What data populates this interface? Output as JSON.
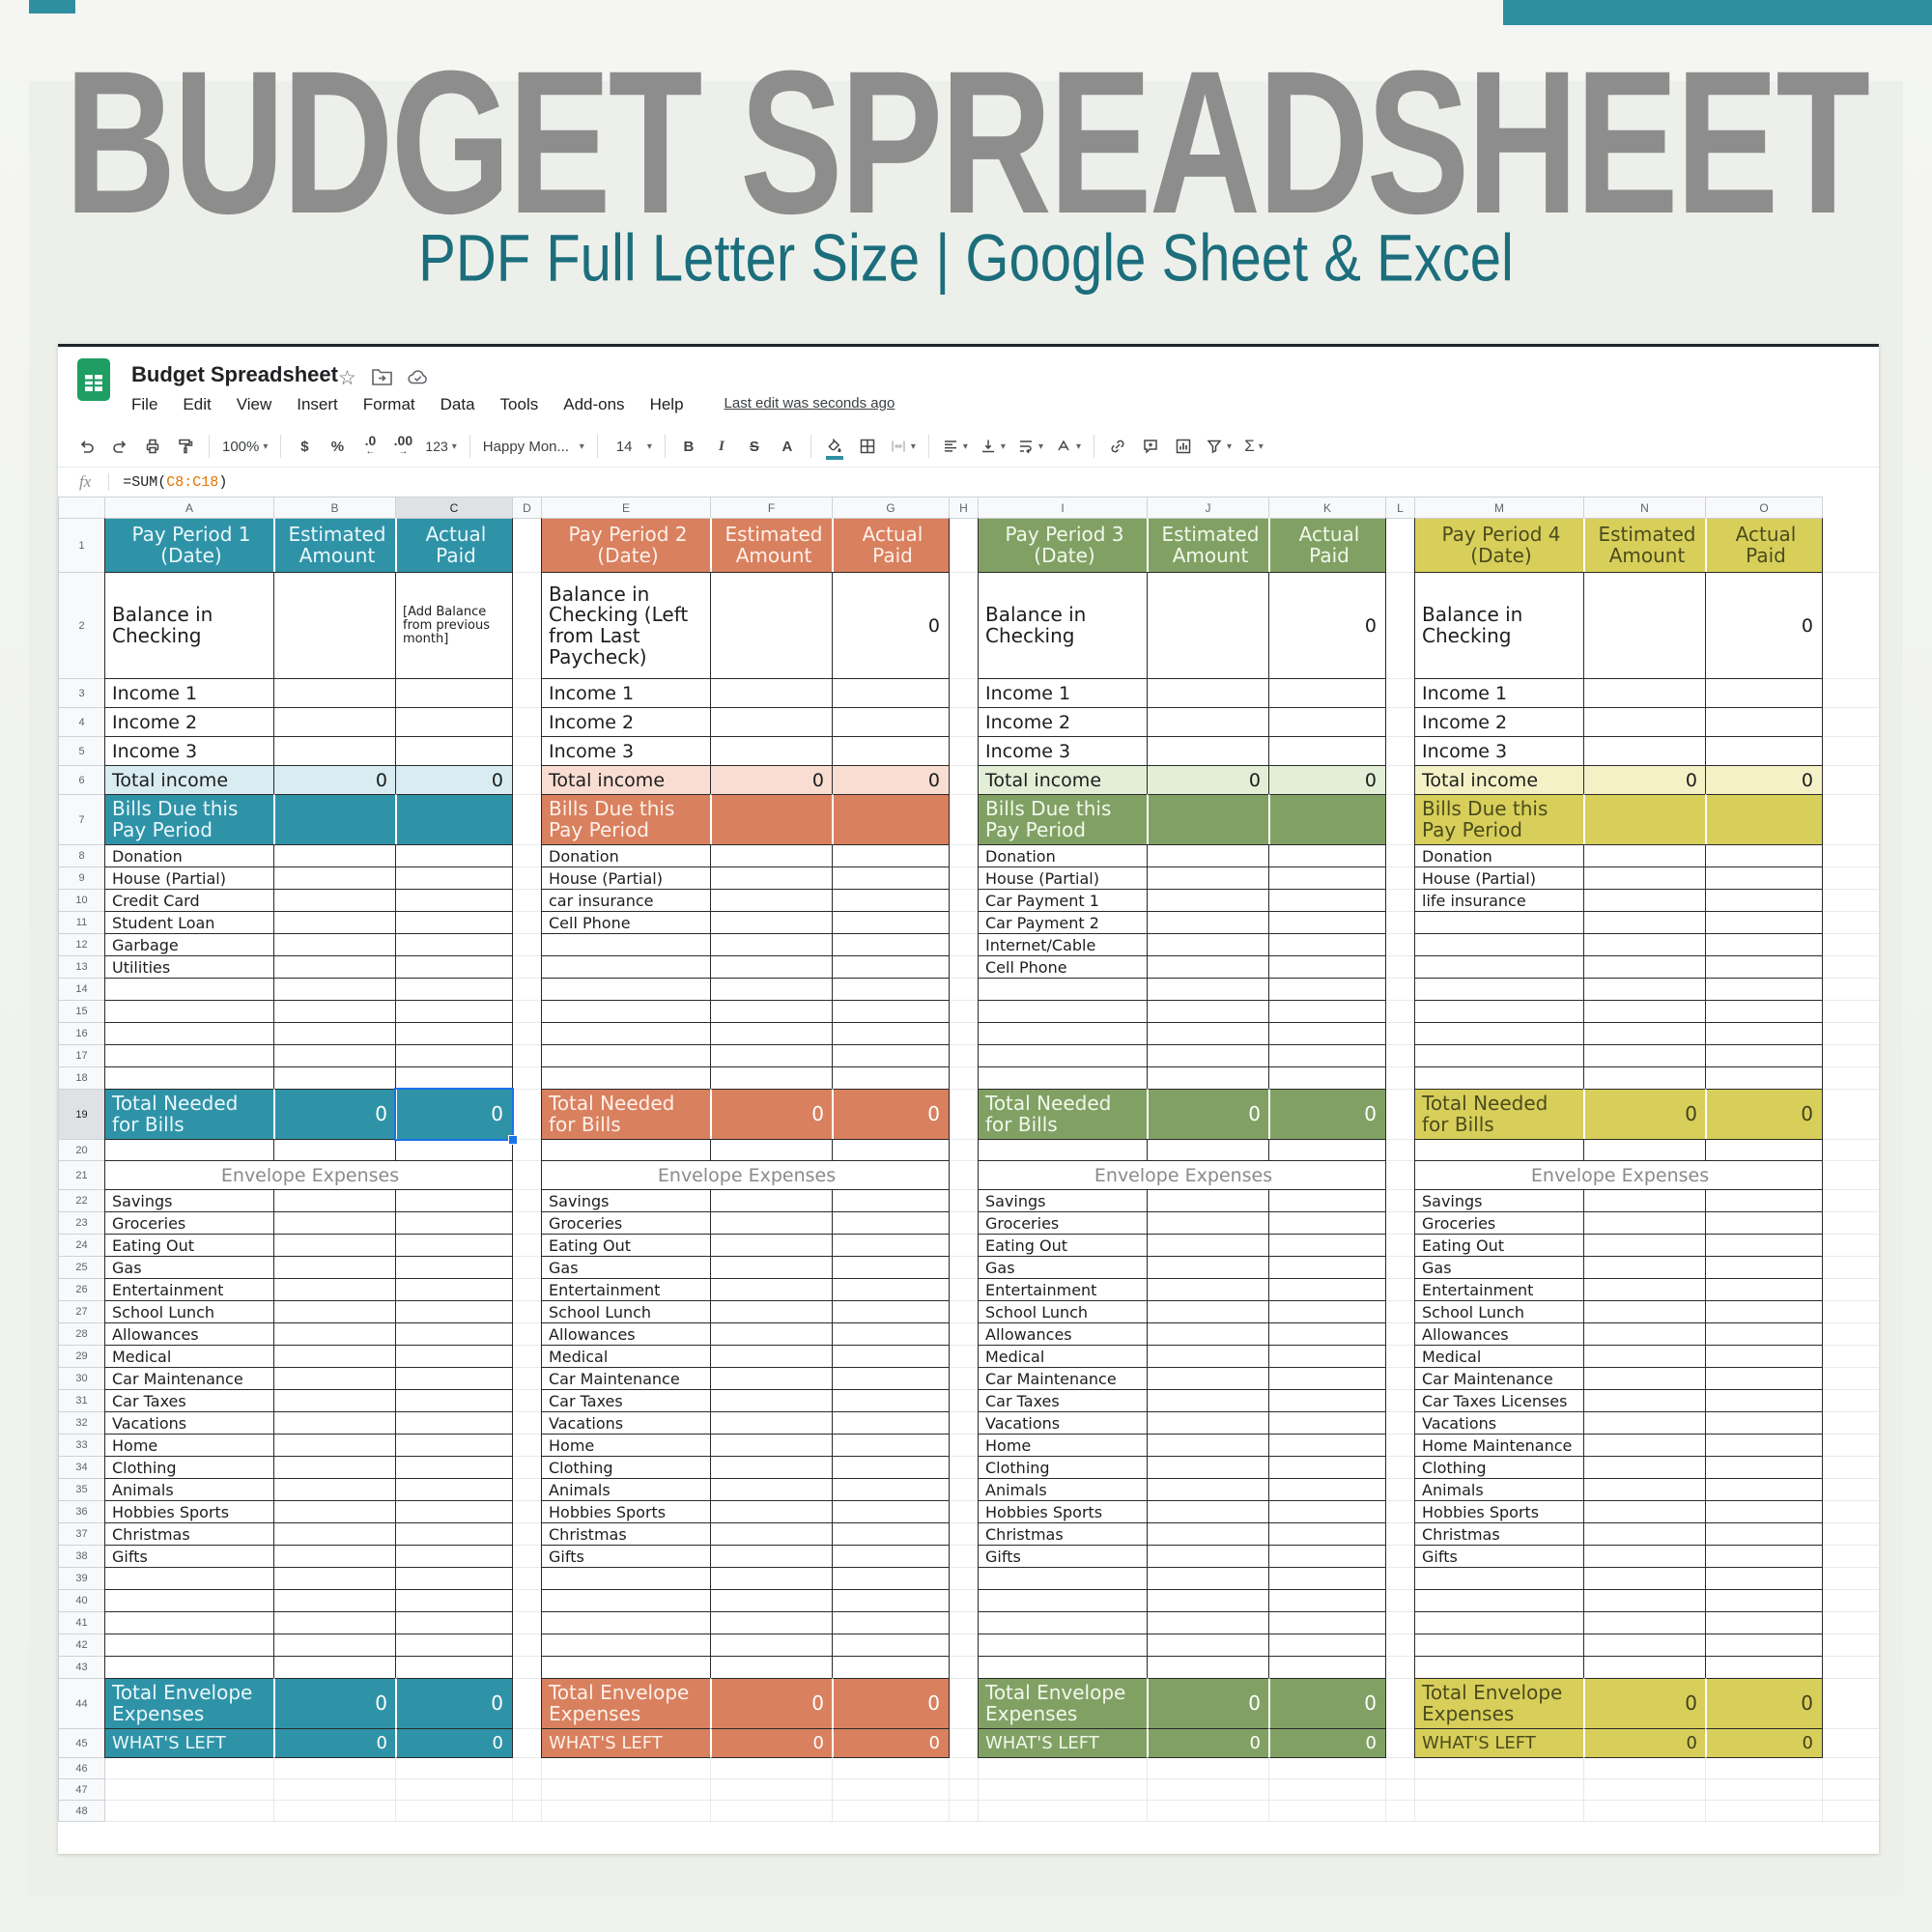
{
  "page": {
    "banner_title": "BUDGET SPREADSHEET",
    "banner_subtitle": "PDF Full Letter Size | Google Sheet & Excel"
  },
  "colors": {
    "accent_teal": "#2e8fa0",
    "title_gray": "#8d8d8d",
    "subtitle_teal": "#1c6e7d",
    "selection_blue": "#1a73e8",
    "formula_range_orange": "#e37400"
  },
  "app": {
    "doc_title": "Budget Spreadsheet",
    "menus": [
      "File",
      "Edit",
      "View",
      "Insert",
      "Format",
      "Data",
      "Tools",
      "Add-ons",
      "Help"
    ],
    "last_edit": "Last edit was seconds ago",
    "fx_label": "fx",
    "formula": {
      "prefix": "=SUM(",
      "range": "C8:C18",
      "suffix": ")"
    },
    "toolbar": {
      "zoom": "100%",
      "currency": "$",
      "percent": "%",
      "decimal_decrease": ".0",
      "decimal_increase": ".00",
      "number_format": "123",
      "font_name": "Happy Mon...",
      "font_size": "14",
      "bold": "B",
      "italic": "I",
      "strikethrough": "S",
      "text_color": "A",
      "functions": "Σ"
    }
  },
  "grid": {
    "column_letters": [
      "A",
      "B",
      "C",
      "D",
      "E",
      "F",
      "G",
      "H",
      "I",
      "J",
      "K",
      "L",
      "M",
      "N",
      "O"
    ],
    "row_count": 48,
    "selected_cell": "C19",
    "selected_column": "C",
    "selected_row": 19
  },
  "sections": [
    {
      "name": "pay-period-1",
      "columns": [
        "A",
        "B",
        "C"
      ],
      "theme": {
        "header_bg": "#2f93a8",
        "header_fg": "#eaf7fa",
        "tint_bg": "#d8ecf2",
        "total_num_fg": "#ffffff"
      },
      "header": [
        "Pay Period 1 (Date)",
        "Estimated Amount",
        "Actual Paid"
      ],
      "balance_label": "Balance in Checking",
      "balance_note": "[Add Balance from previous month]",
      "balance_actual": "",
      "incomes": [
        "Income 1",
        "Income 2",
        "Income 3"
      ],
      "total_income": {
        "label": "Total income",
        "est": "0",
        "act": "0"
      },
      "bills_header": "Bills Due this Pay Period",
      "bills": [
        "Donation",
        "House (Partial)",
        "Credit Card",
        "Student Loan",
        "Garbage",
        "Utilities"
      ],
      "total_bills": {
        "label": "Total Needed for Bills",
        "est": "0",
        "act": "0"
      },
      "envelope_title": "Envelope Expenses",
      "envelopes": [
        "Savings",
        "Groceries",
        "Eating Out",
        "Gas",
        "Entertainment",
        "School Lunch",
        "Allowances",
        "Medical",
        "Car Maintenance",
        "Car Taxes",
        "Vacations",
        "Home",
        "Clothing",
        "Animals",
        "Hobbies Sports",
        "Christmas",
        "Gifts"
      ],
      "total_envelope": {
        "label": "Total Envelope Expenses",
        "est": "0",
        "act": "0"
      },
      "whats_left": {
        "label": "WHAT'S LEFT",
        "est": "0",
        "act": "0"
      }
    },
    {
      "name": "pay-period-2",
      "columns": [
        "E",
        "F",
        "G"
      ],
      "theme": {
        "header_bg": "#d9805f",
        "header_fg": "#fdf1ea",
        "tint_bg": "#f9ddd2",
        "total_num_fg": "#ffffff"
      },
      "header": [
        "Pay Period 2 (Date)",
        "Estimated Amount",
        "Actual Paid"
      ],
      "balance_label": "Balance in Checking (Left from Last Paycheck)",
      "balance_note": "",
      "balance_actual": "0",
      "incomes": [
        "Income 1",
        "Income 2",
        "Income 3"
      ],
      "total_income": {
        "label": "Total income",
        "est": "0",
        "act": "0"
      },
      "bills_header": "Bills Due this Pay Period",
      "bills": [
        "Donation",
        "House (Partial)",
        "car insurance",
        "Cell Phone"
      ],
      "total_bills": {
        "label": "Total Needed for Bills",
        "est": "0",
        "act": "0"
      },
      "envelope_title": "Envelope Expenses",
      "envelopes": [
        "Savings",
        "Groceries",
        "Eating Out",
        "Gas",
        "Entertainment",
        "School Lunch",
        "Allowances",
        "Medical",
        "Car Maintenance",
        "Car Taxes",
        "Vacations",
        "Home",
        "Clothing",
        "Animals",
        "Hobbies Sports",
        "Christmas",
        "Gifts"
      ],
      "total_envelope": {
        "label": "Total Envelope Expenses",
        "est": "0",
        "act": "0"
      },
      "whats_left": {
        "label": "WHAT'S LEFT",
        "est": "0",
        "act": "0"
      }
    },
    {
      "name": "pay-period-3",
      "columns": [
        "I",
        "J",
        "K"
      ],
      "theme": {
        "header_bg": "#81a164",
        "header_fg": "#f2f8ec",
        "tint_bg": "#e3eed7",
        "total_num_fg": "#ffffff"
      },
      "header": [
        "Pay Period 3 (Date)",
        "Estimated Amount",
        "Actual Paid"
      ],
      "balance_label": "Balance in Checking",
      "balance_note": "",
      "balance_actual": "0",
      "incomes": [
        "Income 1",
        "Income 2",
        "Income 3"
      ],
      "total_income": {
        "label": "Total income",
        "est": "0",
        "act": "0"
      },
      "bills_header": "Bills Due this Pay Period",
      "bills": [
        "Donation",
        "House (Partial)",
        "Car Payment 1",
        "Car Payment 2",
        "Internet/Cable",
        "Cell Phone"
      ],
      "total_bills": {
        "label": "Total Needed for Bills",
        "est": "0",
        "act": "0"
      },
      "envelope_title": "Envelope Expenses",
      "envelopes": [
        "Savings",
        "Groceries",
        "Eating Out",
        "Gas",
        "Entertainment",
        "School Lunch",
        "Allowances",
        "Medical",
        "Car Maintenance",
        "Car Taxes",
        "Vacations",
        "Home",
        "Clothing",
        "Animals",
        "Hobbies Sports",
        "Christmas",
        "Gifts"
      ],
      "total_envelope": {
        "label": "Total Envelope Expenses",
        "est": "0",
        "act": "0"
      },
      "whats_left": {
        "label": "WHAT'S LEFT",
        "est": "0",
        "act": "0"
      }
    },
    {
      "name": "pay-period-4",
      "columns": [
        "M",
        "N",
        "O"
      ],
      "theme": {
        "header_bg": "#d8cf5a",
        "header_fg": "#4b4c1e",
        "tint_bg": "#f5f1c6",
        "total_num_fg": "#3f401c"
      },
      "header": [
        "Pay Period 4 (Date)",
        "Estimated Amount",
        "Actual Paid"
      ],
      "balance_label": "Balance in Checking",
      "balance_note": "",
      "balance_actual": "0",
      "incomes": [
        "Income 1",
        "Income 2",
        "Income 3"
      ],
      "total_income": {
        "label": "Total income",
        "est": "0",
        "act": "0"
      },
      "bills_header": "Bills Due this Pay Period",
      "bills": [
        "Donation",
        "House (Partial)",
        "life insurance"
      ],
      "total_bills": {
        "label": "Total Needed for Bills",
        "est": "0",
        "act": "0"
      },
      "envelope_title": "Envelope Expenses",
      "envelopes": [
        "Savings",
        "Groceries",
        "Eating Out",
        "Gas",
        "Entertainment",
        "School Lunch",
        "Allowances",
        "Medical",
        "Car Maintenance",
        "Car Taxes Licenses",
        "Vacations",
        "Home Maintenance",
        "Clothing",
        "Animals",
        "Hobbies Sports",
        "Christmas",
        "Gifts"
      ],
      "total_envelope": {
        "label": "Total Envelope Expenses",
        "est": "0",
        "act": "0"
      },
      "whats_left": {
        "label": "WHAT'S LEFT",
        "est": "0",
        "act": "0"
      }
    }
  ]
}
